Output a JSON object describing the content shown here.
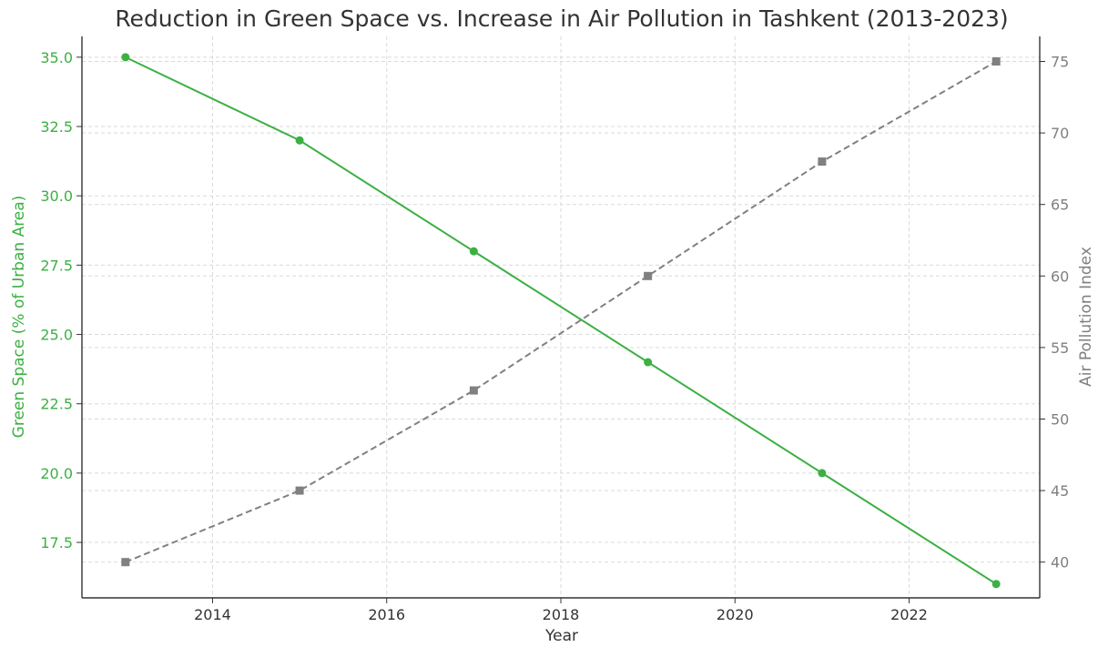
{
  "chart_data": {
    "type": "line",
    "title": "Reduction in Green Space vs. Increase in Air Pollution in Tashkent (2013-2023)",
    "xlabel": "Year",
    "ylabel_left": "Green Space (% of Urban Area)",
    "ylabel_right": "Air Pollution Index",
    "x": [
      2013,
      2015,
      2017,
      2019,
      2021,
      2023
    ],
    "xlim": [
      2012.5,
      2023.5
    ],
    "x_ticks": [
      2014,
      2016,
      2018,
      2020,
      2022
    ],
    "ylim_left": [
      15.5,
      35.75
    ],
    "y_ticks_left": [
      "17.5",
      "20.0",
      "22.5",
      "25.0",
      "27.5",
      "30.0",
      "32.5",
      "35.0"
    ],
    "ylim_right": [
      37.5,
      76.75
    ],
    "y_ticks_right": [
      "40",
      "45",
      "50",
      "55",
      "60",
      "65",
      "70",
      "75"
    ],
    "grid": true,
    "series": [
      {
        "values": [
          35,
          32,
          28,
          24,
          20,
          16
        ],
        "axis": "left",
        "color": "#3cb043",
        "line_style": "solid",
        "marker": "circle"
      },
      {
        "values": [
          40,
          45,
          52,
          60,
          68,
          75
        ],
        "axis": "right",
        "color": "#808080",
        "line_style": "dashed",
        "marker": "square"
      }
    ],
    "colors": {
      "left_axis": "#3cb043",
      "right_axis": "#808080",
      "text": "#333333"
    }
  }
}
